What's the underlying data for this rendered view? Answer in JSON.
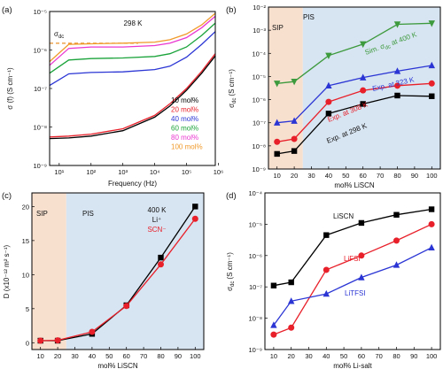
{
  "figure": {
    "panels": [
      "(a)",
      "(b)",
      "(c)",
      "(d)"
    ]
  },
  "chart_data": [
    {
      "type": "line",
      "panel": "(a)",
      "xlabel": "Frequency (Hz)",
      "ylabel": "σ (f) (S cm⁻¹)",
      "xscale": "log",
      "yscale": "log",
      "xlim": [
        5,
        800000
      ],
      "ylim": [
        1e-09,
        1e-05
      ],
      "x_ticks": [
        10,
        100,
        1000,
        10000,
        100000,
        1000000
      ],
      "x_tick_labels": [
        "10¹",
        "10²",
        "10³",
        "10⁴",
        "10⁵",
        "10⁶"
      ],
      "y_ticks": [
        1e-09,
        1e-08,
        1e-07,
        1e-06,
        1e-05
      ],
      "y_tick_labels": [
        "10⁻⁹",
        "10⁻⁸",
        "10⁻⁷",
        "10⁻⁶",
        "10⁻⁵"
      ],
      "annotation_temp": "298 K",
      "annotation_sigma": "σ",
      "annotation_sigma_sub": "dc",
      "sigma_dc_reference": 1.5e-06,
      "x": [
        5,
        20,
        100,
        1000,
        10000,
        30000,
        100000,
        300000,
        800000
      ],
      "series": [
        {
          "name": "10 mol%",
          "color": "#000000",
          "values": [
            5e-09,
            5.2e-09,
            5.8e-09,
            8e-09,
            1.8e-08,
            3.5e-08,
            9e-08,
            2.5e-07,
            7e-07
          ]
        },
        {
          "name": "20 mol%",
          "color": "#e8202a",
          "values": [
            5.5e-09,
            5.8e-09,
            6.5e-09,
            9e-09,
            2e-08,
            4e-08,
            1e-07,
            2.8e-07,
            8e-07
          ]
        },
        {
          "name": "40 mol%",
          "color": "#2a35d4",
          "values": [
            1.2e-07,
            2.4e-07,
            2.6e-07,
            2.7e-07,
            3.1e-07,
            3.8e-07,
            6.5e-07,
            1.4e-06,
            3e-06
          ]
        },
        {
          "name": "60 mol%",
          "color": "#1aa33a",
          "values": [
            2.5e-07,
            5.5e-07,
            6e-07,
            6.2e-07,
            6.8e-07,
            8e-07,
            1.2e-06,
            2.4e-06,
            5e-06
          ]
        },
        {
          "name": "80 mol%",
          "color": "#ea36d0",
          "values": [
            4e-07,
            1.1e-06,
            1.2e-06,
            1.2e-06,
            1.3e-06,
            1.5e-06,
            2.1e-06,
            3.8e-06,
            7.5e-06
          ]
        },
        {
          "name": "100 mol%",
          "color": "#f09a2a",
          "values": [
            5e-07,
            1.4e-06,
            1.45e-06,
            1.5e-06,
            1.6e-06,
            1.85e-06,
            2.6e-06,
            4.5e-06,
            9e-06
          ]
        }
      ]
    },
    {
      "type": "line",
      "panel": "(b)",
      "xlabel": "mol% LiSCN",
      "ylabel": "σ",
      "ylabel_sub": "dc",
      "ylabel_unit": "(S cm⁻¹)",
      "yscale": "log",
      "xlim": [
        5,
        105
      ],
      "ylim": [
        1e-09,
        0.01
      ],
      "x_ticks": [
        10,
        20,
        30,
        40,
        50,
        60,
        70,
        80,
        90,
        100
      ],
      "y_ticks": [
        1e-09,
        1e-08,
        1e-07,
        1e-06,
        1e-05,
        0.0001,
        0.001,
        0.01
      ],
      "y_tick_labels": [
        "10⁻⁹",
        "10⁻⁸",
        "10⁻⁷",
        "10⁻⁶",
        "10⁻⁵",
        "10⁻⁴",
        "10⁻³",
        "10⁻²"
      ],
      "regions": [
        {
          "label": "SIP",
          "from": 5,
          "to": 25,
          "color": "#f8e0cf"
        },
        {
          "label": "PIS",
          "from": 25,
          "to": 105,
          "color": "#d7e4f1"
        }
      ],
      "x": [
        10,
        20,
        40,
        60,
        80,
        100
      ],
      "series": [
        {
          "name": "Sim. σdc at 400 K",
          "color": "#3d9a3d",
          "marker": "triangle-down",
          "values": [
            5e-06,
            6e-06,
            8e-05,
            0.00025,
            0.0018,
            0.002
          ]
        },
        {
          "name": "Exp. at 323 K",
          "color": "#2a35d4",
          "marker": "triangle-up",
          "values": [
            1e-07,
            1.2e-07,
            4e-06,
            9e-06,
            1.7e-05,
            3e-05
          ]
        },
        {
          "name": "Exp. at 308 K",
          "color": "#e8202a",
          "marker": "circle",
          "values": [
            1.5e-08,
            2e-08,
            8e-07,
            2.5e-06,
            4e-06,
            5e-06
          ]
        },
        {
          "name": "Exp. at 298 K",
          "color": "#000000",
          "marker": "square",
          "values": [
            4.5e-09,
            6e-09,
            2.5e-07,
            6.5e-07,
            1.5e-06,
            1.4e-06
          ]
        }
      ],
      "labels": {
        "sim": "Sim. σ",
        "sim_sub": "dc",
        "sim_tail": " at 400 K",
        "e323": "Exp. at 323 K",
        "e308": "Exp. at 308 K",
        "e298": "Exp. at 298 K"
      }
    },
    {
      "type": "line",
      "panel": "(c)",
      "xlabel": "mol% LiSCN",
      "ylabel": "D (x10⁻¹² m² s⁻¹)",
      "xlim": [
        5,
        105
      ],
      "ylim": [
        -1,
        22
      ],
      "x_ticks": [
        10,
        20,
        30,
        40,
        50,
        60,
        70,
        80,
        90,
        100
      ],
      "y_ticks": [
        0,
        5,
        10,
        15,
        20
      ],
      "regions": [
        {
          "label": "SIP",
          "from": 5,
          "to": 25,
          "color": "#f8e0cf"
        },
        {
          "label": "PIS",
          "from": 25,
          "to": 105,
          "color": "#d7e4f1"
        }
      ],
      "annotation_temp": "400 K",
      "x": [
        10,
        20,
        40,
        60,
        80,
        100
      ],
      "series": [
        {
          "name": "Li⁺",
          "color": "#000000",
          "marker": "square",
          "values": [
            0.3,
            0.3,
            1.3,
            5.5,
            12.5,
            20.0
          ]
        },
        {
          "name": "SCN⁻",
          "color": "#e8202a",
          "marker": "circle",
          "values": [
            0.3,
            0.35,
            1.6,
            5.4,
            11.5,
            18.2
          ]
        }
      ]
    },
    {
      "type": "line",
      "panel": "(d)",
      "xlabel": "mol% Li-salt",
      "ylabel": "σ",
      "ylabel_sub": "dc",
      "ylabel_unit": "(S cm⁻¹)",
      "yscale": "log",
      "xlim": [
        5,
        105
      ],
      "ylim": [
        1e-09,
        0.0001
      ],
      "x_ticks": [
        10,
        20,
        30,
        40,
        50,
        60,
        70,
        80,
        90,
        100
      ],
      "y_ticks": [
        1e-09,
        1e-08,
        1e-07,
        1e-06,
        1e-05,
        0.0001
      ],
      "y_tick_labels": [
        "10⁻⁹",
        "10⁻⁸",
        "10⁻⁷",
        "10⁻⁶",
        "10⁻⁵",
        "10⁻⁴"
      ],
      "x": [
        10,
        20,
        40,
        60,
        80,
        100
      ],
      "series": [
        {
          "name": "LiSCN",
          "color": "#000000",
          "marker": "square",
          "values": [
            1.1e-07,
            1.4e-07,
            4.5e-06,
            1.1e-05,
            2e-05,
            3e-05
          ]
        },
        {
          "name": "LiFSI",
          "color": "#e8202a",
          "marker": "circle",
          "values": [
            3e-09,
            5e-09,
            3.5e-07,
            1e-06,
            3e-06,
            1e-05
          ]
        },
        {
          "name": "LiTFSI",
          "color": "#2a35d4",
          "marker": "triangle-up",
          "values": [
            6e-09,
            3.5e-08,
            6e-08,
            2e-07,
            5e-07,
            1.8e-06
          ]
        }
      ]
    }
  ]
}
